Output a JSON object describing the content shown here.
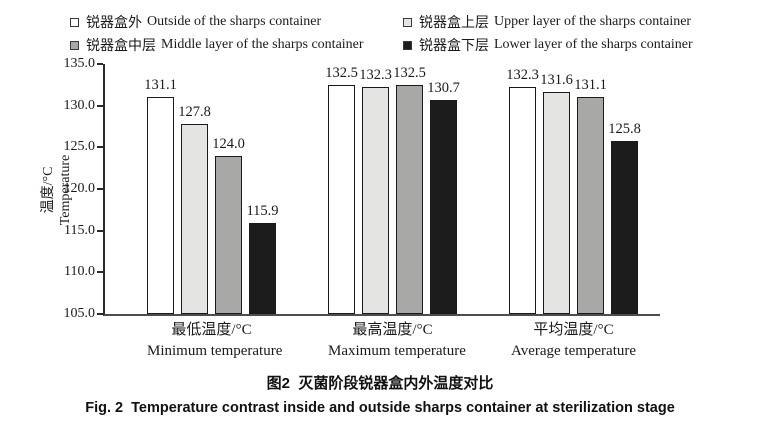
{
  "figure": {
    "caption_cn": "图2  灭菌阶段锐器盒内外温度对比",
    "caption_en": "Fig. 2  Temperature contrast inside and outside sharps container at sterilization stage"
  },
  "chart_data": {
    "type": "bar",
    "categories_cn": [
      "最低温度/°C",
      "最高温度/°C",
      "平均温度/°C"
    ],
    "categories_en": [
      "Minimum temperature",
      "Maximum temperature",
      "Average temperature"
    ],
    "series": [
      {
        "label_cn": "锐器盒外",
        "label_en": "Outside of the sharps container",
        "color": "#ffffff",
        "values": [
          131.1,
          132.5,
          132.3
        ]
      },
      {
        "label_cn": "锐器盒上层",
        "label_en": "Upper layer of the sharps container",
        "color": "#e4e4e2",
        "values": [
          127.8,
          132.3,
          131.6
        ]
      },
      {
        "label_cn": "锐器盒中层",
        "label_en": "Middle layer of the sharps container",
        "color": "#a8a8a6",
        "values": [
          124.0,
          132.5,
          131.1
        ]
      },
      {
        "label_cn": "锐器盒下层",
        "label_en": "Lower layer of the sharps container",
        "color": "#1c1c1c",
        "values": [
          115.9,
          130.7,
          125.8
        ]
      }
    ],
    "ylabel_cn": "温度/°C",
    "ylabel_en": "Temperature",
    "ylim": [
      105.0,
      135.0
    ],
    "ytick_step": 5.0,
    "legend_position": "top",
    "grid": false,
    "bar_border_color": "#1a1a1a"
  }
}
